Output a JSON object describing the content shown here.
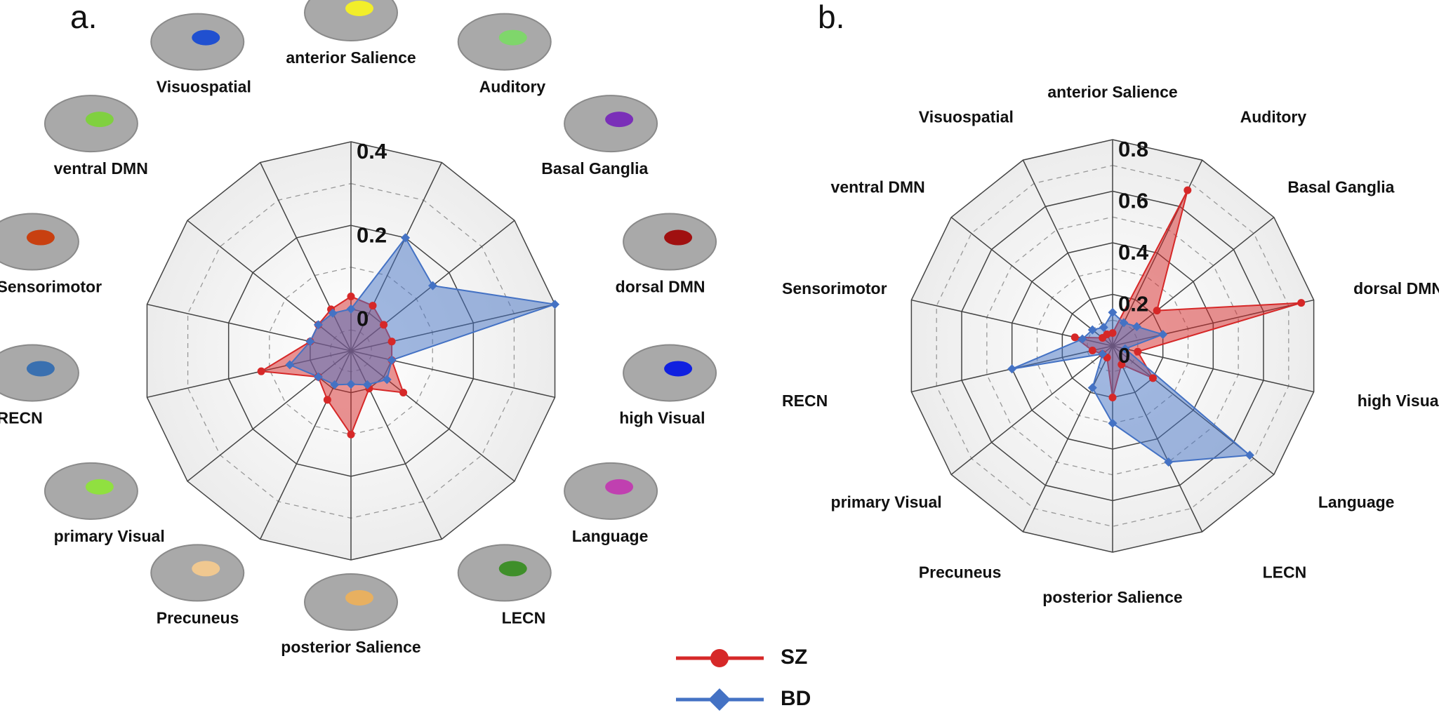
{
  "chart_data": [
    {
      "type": "radar",
      "title": "a.",
      "categories": [
        "anterior Salience",
        "Auditory",
        "Basal Ganglia",
        "dorsal DMN",
        "high Visual",
        "Language",
        "LECN",
        "posterior Salience",
        "Precuneus",
        "primary Visual",
        "RECN",
        "Sensorimotor",
        "ventral DMN",
        "Visuospatial"
      ],
      "series": [
        {
          "name": "SZ",
          "color": "#d62828",
          "values": [
            0.03,
            0.02,
            0.0,
            0.0,
            0.0,
            0.06,
            0.0,
            0.1,
            0.03,
            0.0,
            0.12,
            0.0,
            0.0,
            0.01
          ]
        },
        {
          "name": "BD",
          "color": "#4472c4",
          "values": [
            0.0,
            0.2,
            0.15,
            0.4,
            0.0,
            0.01,
            -0.01,
            -0.02,
            -0.01,
            0.0,
            0.05,
            0.0,
            0.0,
            0.0
          ]
        }
      ],
      "ylim": [
        -0.1,
        0.4
      ],
      "yticks": [
        0,
        0.2,
        0.4
      ]
    },
    {
      "type": "radar",
      "title": "b.",
      "categories": [
        "anterior Salience",
        "Auditory",
        "Basal Ganglia",
        "dorsal DMN",
        "high Visual",
        "Language",
        "LECN",
        "posterior Salience",
        "Precuneus",
        "primary Visual",
        "RECN",
        "Sensorimotor",
        "ventral DMN",
        "Visuospatial"
      ],
      "series": [
        {
          "name": "SZ",
          "color": "#d62828",
          "values": [
            0.05,
            0.67,
            0.22,
            0.75,
            0.1,
            0.2,
            0.08,
            0.2,
            0.05,
            0.05,
            0.08,
            0.15,
            0.05,
            0.05
          ]
        },
        {
          "name": "BD",
          "color": "#4472c4",
          "values": [
            0.13,
            0.1,
            0.12,
            0.2,
            0.05,
            0.68,
            0.5,
            0.3,
            0.18,
            0.05,
            0.4,
            0.12,
            0.1,
            0.08
          ]
        }
      ],
      "ylim": [
        0,
        0.8
      ],
      "yticks": [
        0,
        0.2,
        0.4,
        0.6,
        0.8
      ]
    }
  ]
}
